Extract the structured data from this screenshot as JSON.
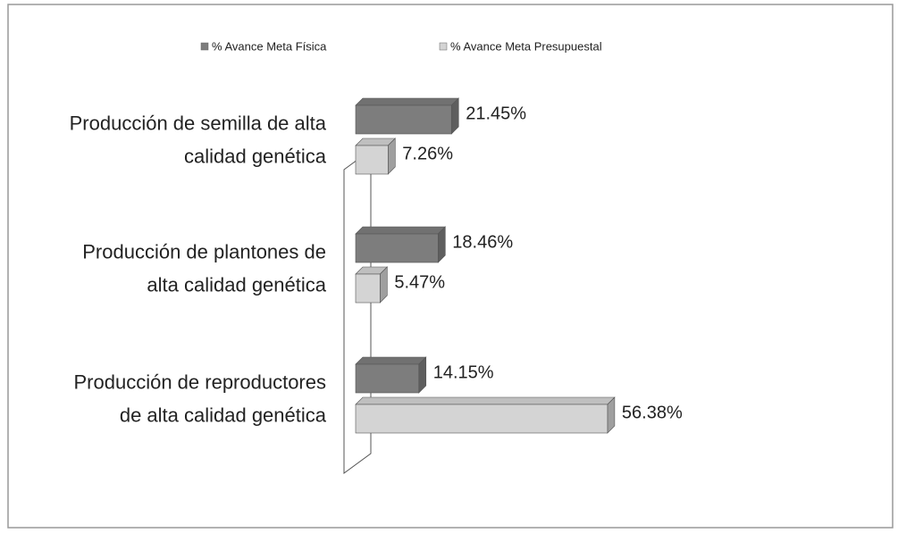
{
  "chart_data": {
    "type": "bar",
    "orientation": "horizontal",
    "categories": [
      [
        "Producción de semilla de alta",
        "calidad genética"
      ],
      [
        "Producción de plantones de",
        "alta calidad genética"
      ],
      [
        "Producción de reproductores",
        "de alta calidad genética"
      ]
    ],
    "series": [
      {
        "name": "% Avance Meta Física",
        "color": "#7d7d7d",
        "values": [
          21.45,
          18.46,
          14.15
        ],
        "value_labels": [
          "21.45%",
          "18.46%",
          "14.15%"
        ]
      },
      {
        "name": "% Avance Meta Presupuestal",
        "color": "#d4d4d4",
        "values": [
          7.26,
          5.47,
          56.38
        ],
        "value_labels": [
          "7.26%",
          "5.47%",
          "56.38%"
        ]
      }
    ],
    "legend": "top"
  }
}
